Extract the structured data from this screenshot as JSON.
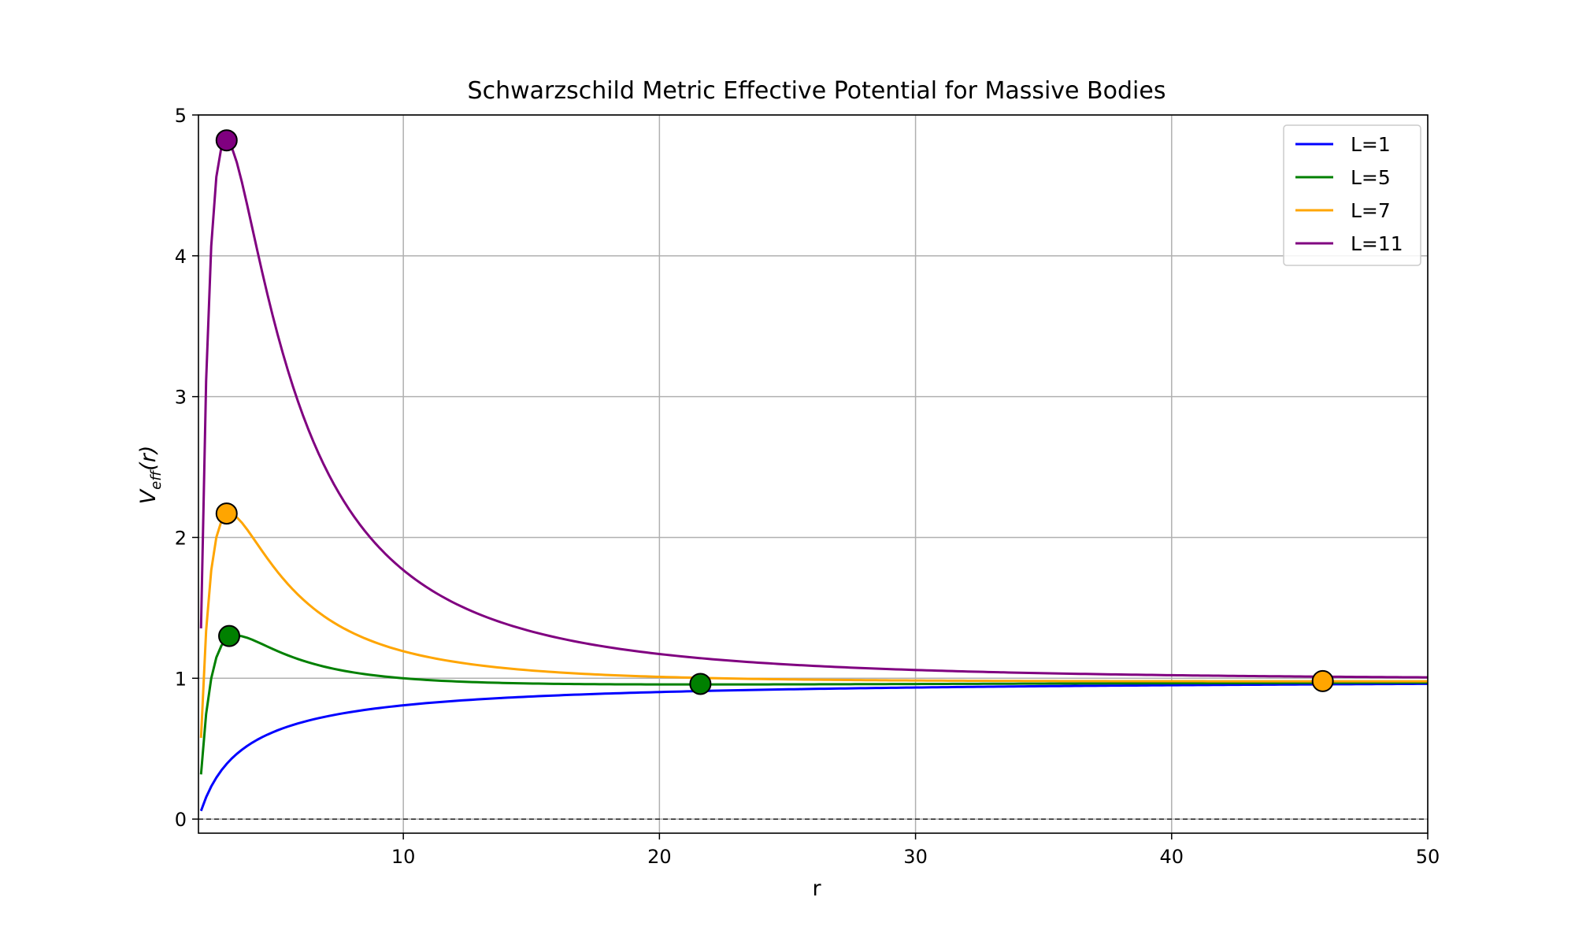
{
  "chart_data": {
    "type": "line",
    "title": "Schwarzschild Metric Effective Potential for Massive Bodies",
    "xlabel": "r",
    "ylabel_main": "V",
    "ylabel_sub": "eff",
    "ylabel_tail": "(r)",
    "xlim": [
      2.0,
      50
    ],
    "ylim": [
      -0.1,
      5.0
    ],
    "xticks": [
      10,
      20,
      30,
      40,
      50
    ],
    "yticks": [
      0,
      1,
      2,
      3,
      4,
      5
    ],
    "grid": true,
    "legend_position": "top-right",
    "reference_line_y": 0,
    "series": [
      {
        "name": "L=1",
        "L": 1,
        "color": "#0000ff",
        "extrema": []
      },
      {
        "name": "L=5",
        "L": 5,
        "color": "#008000",
        "extrema": [
          {
            "r": 3.2,
            "v": 1.3
          },
          {
            "r": 21.6,
            "v": 0.96
          }
        ]
      },
      {
        "name": "L=7",
        "L": 7,
        "color": "#ffa500",
        "extrema": [
          {
            "r": 3.1,
            "v": 2.17
          },
          {
            "r": 45.9,
            "v": 0.98
          }
        ]
      },
      {
        "name": "L=11",
        "L": 11,
        "color": "#800080",
        "extrema": [
          {
            "r": 3.1,
            "v": 4.82
          }
        ]
      }
    ]
  }
}
